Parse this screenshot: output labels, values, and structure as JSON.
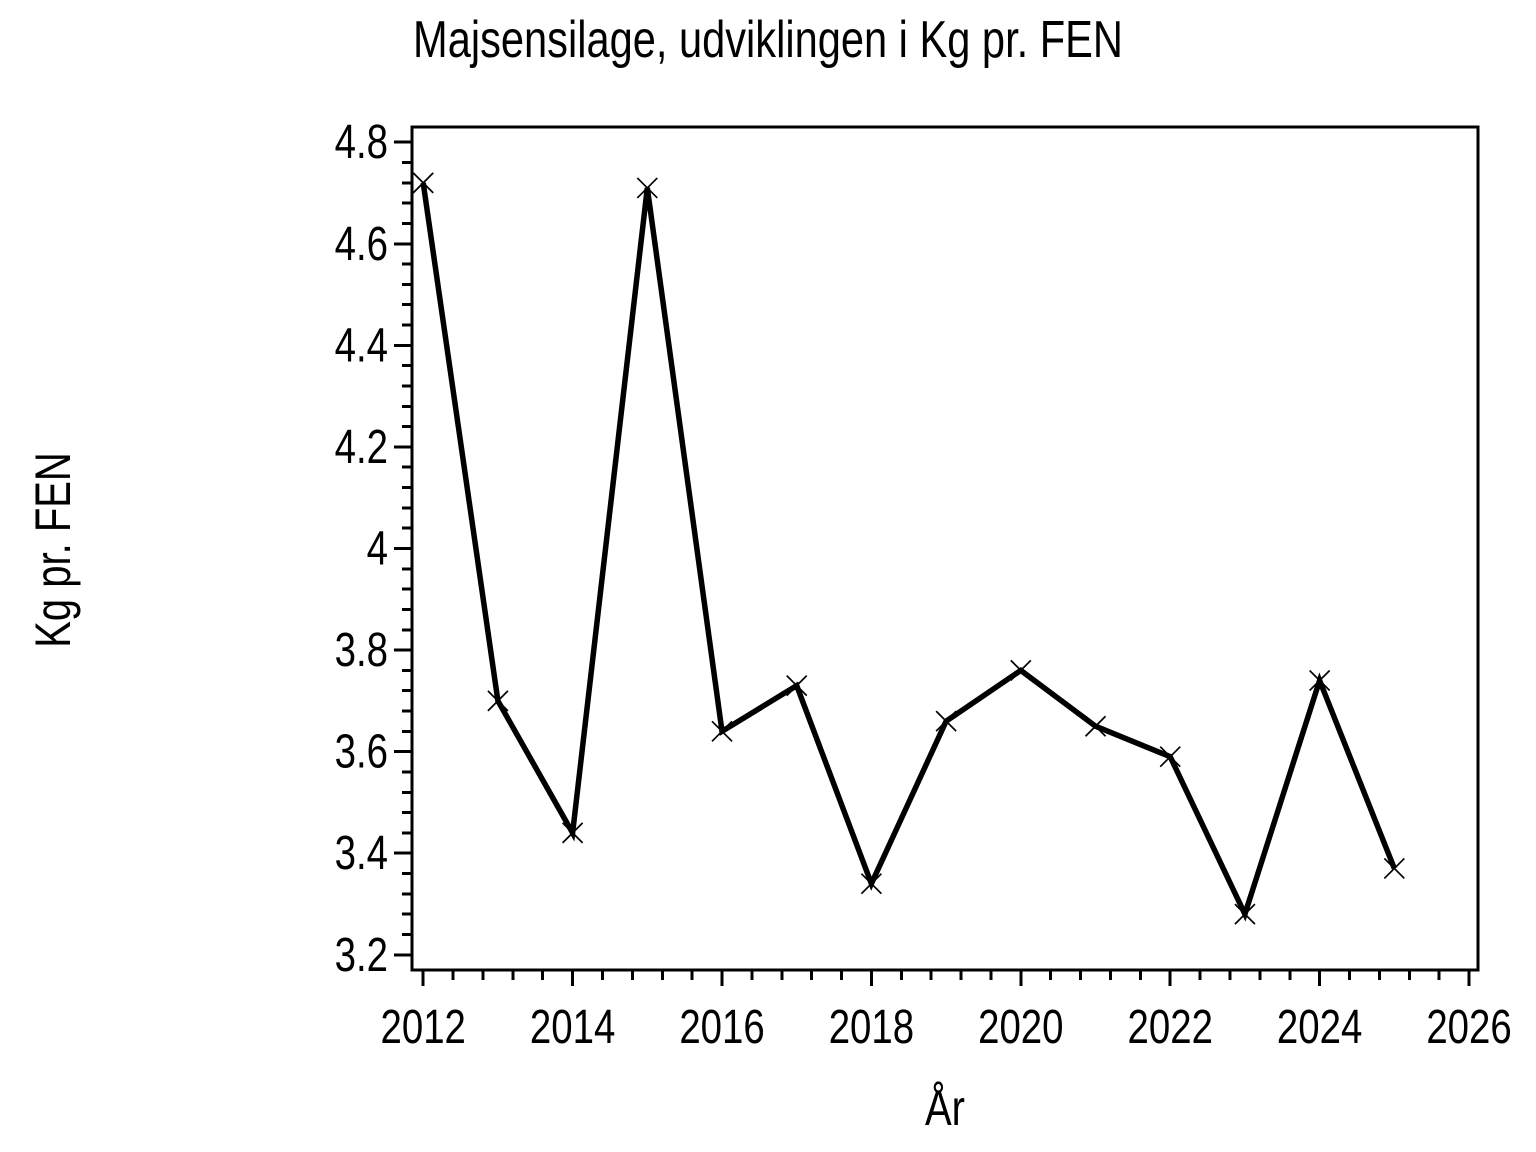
{
  "chart_data": {
    "type": "line",
    "title": "Majsensilage, udviklingen i Kg pr. FEN",
    "xlabel": "År",
    "ylabel": "Kg pr. FEN",
    "x": [
      2012,
      2013,
      2014,
      2015,
      2016,
      2017,
      2018,
      2019,
      2020,
      2021,
      2022,
      2023,
      2024,
      2025
    ],
    "series": [
      {
        "name": "Kg pr. FEN",
        "values": [
          4.72,
          3.7,
          3.44,
          4.71,
          3.64,
          3.73,
          3.34,
          3.66,
          3.76,
          3.65,
          3.59,
          3.28,
          3.74,
          3.37
        ]
      }
    ],
    "x_ticks": [
      2012,
      2014,
      2016,
      2018,
      2020,
      2022,
      2024,
      2026
    ],
    "x_tick_labels": [
      "2012",
      "2014",
      "2016",
      "2018",
      "2020",
      "2022",
      "2024",
      "2026"
    ],
    "y_ticks": [
      3.2,
      3.4,
      3.6,
      3.8,
      4.0,
      4.2,
      4.4,
      4.6,
      4.8
    ],
    "y_tick_labels": [
      "3.2",
      "3.4",
      "3.6",
      "3.8",
      "4",
      "4.2",
      "4.4",
      "4.6",
      "4.8"
    ],
    "x_minor_step": 0.4,
    "y_minor_step": 0.04,
    "xlim": [
      2011.85,
      2026.12
    ],
    "ylim": [
      3.17,
      4.83
    ],
    "grid": false,
    "legend": null,
    "marker": "x",
    "colors": {
      "line": "#000000",
      "text": "#000000",
      "background": "#ffffff"
    }
  }
}
